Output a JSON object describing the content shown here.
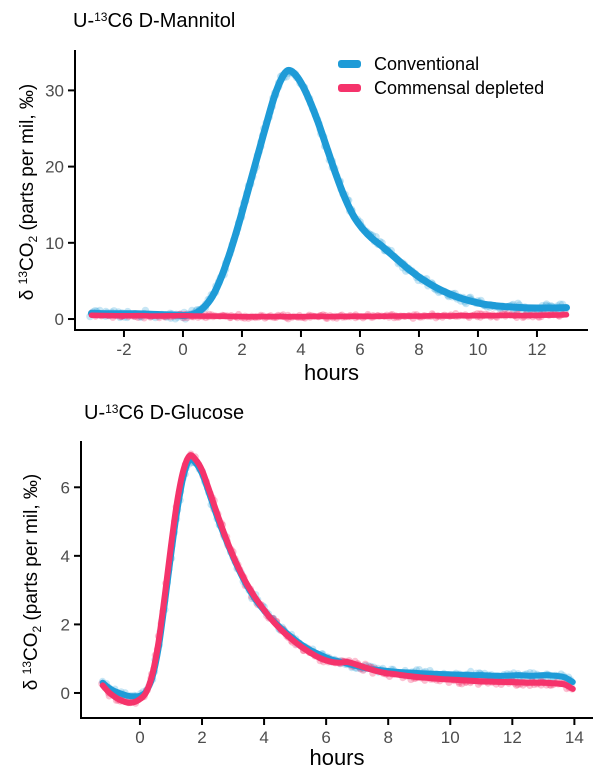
{
  "background": "#ffffff",
  "style_colors": {
    "blue": "#1E9BD7",
    "pink": "#F5336B",
    "axis": "#000000",
    "tick_label": "#4d4d4d"
  },
  "legend": {
    "position": "top-right-inside-first-chart",
    "items": [
      {
        "label": "Conventional",
        "color": "#1E9BD7"
      },
      {
        "label": "Commensal depleted",
        "color": "#F5336B"
      }
    ]
  },
  "chart_data": [
    {
      "type": "line",
      "title_text": "U-13C6 D-Mannitol",
      "title_parts": {
        "prefix": "U-",
        "sup": "13",
        "suffix": "C6 D-Mannitol"
      },
      "xlabel": "hours",
      "ylabel_text": "d 13CO2 (parts per mil, ‰)",
      "ylabel_parts": {
        "p1": "δ ",
        "sup": "13",
        "p2": "CO",
        "sub": "2",
        "p3": " (parts per mil, ‰)"
      },
      "x_ticks": [
        -2,
        0,
        2,
        4,
        6,
        8,
        10,
        12
      ],
      "y_ticks": [
        0,
        10,
        20,
        30
      ],
      "xlim": [
        -3.66,
        13.73
      ],
      "ylim": [
        -1.44,
        35.3
      ],
      "grid": false,
      "show_legend": true,
      "series": [
        {
          "name": "Conventional",
          "color": "#1E9BD7",
          "line_width": 7,
          "scatter": {
            "r": 3.8,
            "jitter": 4.5,
            "jitter_x": 1.6,
            "step": 0.055,
            "opacity": 0.25,
            "seed": 7
          },
          "points": [
            [
              -3.1,
              0.75
            ],
            [
              -2.6,
              0.7
            ],
            [
              -2.1,
              0.7
            ],
            [
              -1.6,
              0.68
            ],
            [
              -1.1,
              0.63
            ],
            [
              -0.6,
              0.57
            ],
            [
              -0.2,
              0.5
            ],
            [
              0.1,
              0.48
            ],
            [
              0.4,
              0.7
            ],
            [
              0.7,
              1.5
            ],
            [
              1.0,
              3.0
            ],
            [
              1.3,
              5.5
            ],
            [
              1.6,
              8.8
            ],
            [
              1.9,
              12.6
            ],
            [
              2.2,
              16.8
            ],
            [
              2.5,
              21.0
            ],
            [
              2.8,
              25.2
            ],
            [
              3.1,
              29.2
            ],
            [
              3.35,
              31.6
            ],
            [
              3.55,
              32.6
            ],
            [
              3.75,
              32.3
            ],
            [
              4.0,
              31.0
            ],
            [
              4.3,
              28.6
            ],
            [
              4.6,
              25.6
            ],
            [
              4.9,
              22.2
            ],
            [
              5.2,
              18.8
            ],
            [
              5.5,
              15.8
            ],
            [
              5.8,
              13.4
            ],
            [
              6.1,
              11.8
            ],
            [
              6.4,
              10.6
            ],
            [
              6.7,
              9.7
            ],
            [
              7.0,
              8.7
            ],
            [
              7.3,
              7.7
            ],
            [
              7.6,
              6.7
            ],
            [
              7.9,
              5.8
            ],
            [
              8.2,
              5.0
            ],
            [
              8.6,
              4.1
            ],
            [
              9.0,
              3.35
            ],
            [
              9.4,
              2.75
            ],
            [
              9.8,
              2.3
            ],
            [
              10.2,
              1.95
            ],
            [
              10.6,
              1.75
            ],
            [
              11.0,
              1.6
            ],
            [
              11.5,
              1.5
            ],
            [
              12.0,
              1.45
            ],
            [
              12.5,
              1.45
            ],
            [
              13.0,
              1.5
            ]
          ]
        },
        {
          "name": "Commensal depleted",
          "color": "#F5336B",
          "line_width": 5.5,
          "scatter": {
            "r": 3.4,
            "jitter": 2.6,
            "jitter_x": 1.6,
            "step": 0.055,
            "opacity": 0.3,
            "seed": 13
          },
          "points": [
            [
              -3.1,
              0.5
            ],
            [
              -2.5,
              0.45
            ],
            [
              -2.0,
              0.42
            ],
            [
              -1.5,
              0.45
            ],
            [
              -1.0,
              0.4
            ],
            [
              -0.5,
              0.42
            ],
            [
              0.0,
              0.45
            ],
            [
              0.5,
              0.4
            ],
            [
              1.0,
              0.38
            ],
            [
              1.5,
              0.35
            ],
            [
              2.0,
              0.32
            ],
            [
              2.5,
              0.3
            ],
            [
              3.0,
              0.32
            ],
            [
              3.5,
              0.3
            ],
            [
              4.0,
              0.32
            ],
            [
              4.5,
              0.35
            ],
            [
              5.0,
              0.32
            ],
            [
              5.5,
              0.35
            ],
            [
              6.0,
              0.38
            ],
            [
              6.5,
              0.35
            ],
            [
              7.0,
              0.38
            ],
            [
              7.5,
              0.4
            ],
            [
              8.0,
              0.38
            ],
            [
              8.5,
              0.42
            ],
            [
              9.0,
              0.4
            ],
            [
              9.5,
              0.45
            ],
            [
              10.0,
              0.42
            ],
            [
              10.5,
              0.45
            ],
            [
              11.0,
              0.48
            ],
            [
              11.5,
              0.45
            ],
            [
              12.0,
              0.5
            ],
            [
              12.5,
              0.52
            ],
            [
              13.0,
              0.55
            ]
          ]
        }
      ]
    },
    {
      "type": "line",
      "title_text": "U-13C6 D-Glucose",
      "title_parts": {
        "prefix": "U-",
        "sup": "13",
        "suffix": "C6 D-Glucose"
      },
      "xlabel": "hours",
      "ylabel_text": "d 13CO2 (parts per mil, ‰)",
      "ylabel_parts": {
        "p1": "δ ",
        "sup": "13",
        "p2": "CO",
        "sub": "2",
        "p3": " (parts per mil, ‰)"
      },
      "x_ticks": [
        0,
        2,
        4,
        6,
        8,
        10,
        12,
        14
      ],
      "y_ticks": [
        0,
        2,
        4,
        6
      ],
      "xlim": [
        -1.9,
        14.6
      ],
      "ylim": [
        -0.73,
        7.35
      ],
      "grid": false,
      "show_legend": false,
      "series": [
        {
          "name": "Conventional",
          "color": "#1E9BD7",
          "line_width": 6,
          "scatter": {
            "r": 3.5,
            "jitter": 4.2,
            "jitter_x": 1.6,
            "step": 0.055,
            "opacity": 0.25,
            "seed": 21
          },
          "points": [
            [
              -1.2,
              0.3
            ],
            [
              -1.0,
              0.15
            ],
            [
              -0.8,
              0.05
            ],
            [
              -0.6,
              -0.02
            ],
            [
              -0.4,
              -0.08
            ],
            [
              -0.2,
              -0.1
            ],
            [
              0.0,
              -0.08
            ],
            [
              0.2,
              0.05
            ],
            [
              0.4,
              0.45
            ],
            [
              0.6,
              1.3
            ],
            [
              0.8,
              2.6
            ],
            [
              1.0,
              4.0
            ],
            [
              1.2,
              5.3
            ],
            [
              1.4,
              6.3
            ],
            [
              1.6,
              6.8
            ],
            [
              1.8,
              6.7
            ],
            [
              2.0,
              6.4
            ],
            [
              2.2,
              5.9
            ],
            [
              2.5,
              5.1
            ],
            [
              2.8,
              4.4
            ],
            [
              3.1,
              3.75
            ],
            [
              3.4,
              3.2
            ],
            [
              3.7,
              2.75
            ],
            [
              4.0,
              2.4
            ],
            [
              4.3,
              2.1
            ],
            [
              4.6,
              1.85
            ],
            [
              4.9,
              1.62
            ],
            [
              5.2,
              1.42
            ],
            [
              5.5,
              1.25
            ],
            [
              5.8,
              1.12
            ],
            [
              6.1,
              1.0
            ],
            [
              6.4,
              0.92
            ],
            [
              6.7,
              0.85
            ],
            [
              7.0,
              0.78
            ],
            [
              7.4,
              0.7
            ],
            [
              7.8,
              0.66
            ],
            [
              8.2,
              0.62
            ],
            [
              8.6,
              0.6
            ],
            [
              9.0,
              0.58
            ],
            [
              9.4,
              0.56
            ],
            [
              9.8,
              0.55
            ],
            [
              10.2,
              0.54
            ],
            [
              10.6,
              0.52
            ],
            [
              11.0,
              0.52
            ],
            [
              11.4,
              0.5
            ],
            [
              11.8,
              0.5
            ],
            [
              12.2,
              0.52
            ],
            [
              12.6,
              0.5
            ],
            [
              13.0,
              0.52
            ],
            [
              13.4,
              0.5
            ],
            [
              13.7,
              0.45
            ],
            [
              13.95,
              0.32
            ]
          ]
        },
        {
          "name": "Commensal depleted",
          "color": "#F5336B",
          "line_width": 6,
          "scatter": {
            "r": 3.5,
            "jitter": 4.2,
            "jitter_x": 1.6,
            "step": 0.055,
            "opacity": 0.3,
            "seed": 29
          },
          "points": [
            [
              -1.2,
              0.22
            ],
            [
              -1.0,
              0.02
            ],
            [
              -0.8,
              -0.12
            ],
            [
              -0.6,
              -0.22
            ],
            [
              -0.4,
              -0.28
            ],
            [
              -0.2,
              -0.27
            ],
            [
              0.0,
              -0.18
            ],
            [
              0.2,
              0.02
            ],
            [
              0.4,
              0.55
            ],
            [
              0.6,
              1.5
            ],
            [
              0.8,
              2.85
            ],
            [
              1.0,
              4.3
            ],
            [
              1.2,
              5.6
            ],
            [
              1.4,
              6.5
            ],
            [
              1.6,
              6.92
            ],
            [
              1.8,
              6.8
            ],
            [
              2.0,
              6.5
            ],
            [
              2.2,
              6.0
            ],
            [
              2.5,
              5.2
            ],
            [
              2.8,
              4.45
            ],
            [
              3.1,
              3.8
            ],
            [
              3.4,
              3.25
            ],
            [
              3.7,
              2.8
            ],
            [
              4.0,
              2.42
            ],
            [
              4.3,
              2.08
            ],
            [
              4.6,
              1.8
            ],
            [
              4.9,
              1.56
            ],
            [
              5.2,
              1.35
            ],
            [
              5.5,
              1.17
            ],
            [
              5.8,
              1.02
            ],
            [
              6.1,
              0.92
            ],
            [
              6.4,
              0.88
            ],
            [
              6.7,
              0.9
            ],
            [
              7.0,
              0.82
            ],
            [
              7.4,
              0.7
            ],
            [
              7.8,
              0.6
            ],
            [
              8.2,
              0.55
            ],
            [
              8.6,
              0.5
            ],
            [
              9.0,
              0.46
            ],
            [
              9.4,
              0.43
            ],
            [
              9.8,
              0.4
            ],
            [
              10.2,
              0.38
            ],
            [
              10.6,
              0.36
            ],
            [
              11.0,
              0.34
            ],
            [
              11.4,
              0.33
            ],
            [
              11.8,
              0.32
            ],
            [
              12.2,
              0.31
            ],
            [
              12.6,
              0.3
            ],
            [
              13.0,
              0.3
            ],
            [
              13.4,
              0.28
            ],
            [
              13.7,
              0.24
            ],
            [
              13.95,
              0.12
            ]
          ]
        }
      ]
    }
  ]
}
